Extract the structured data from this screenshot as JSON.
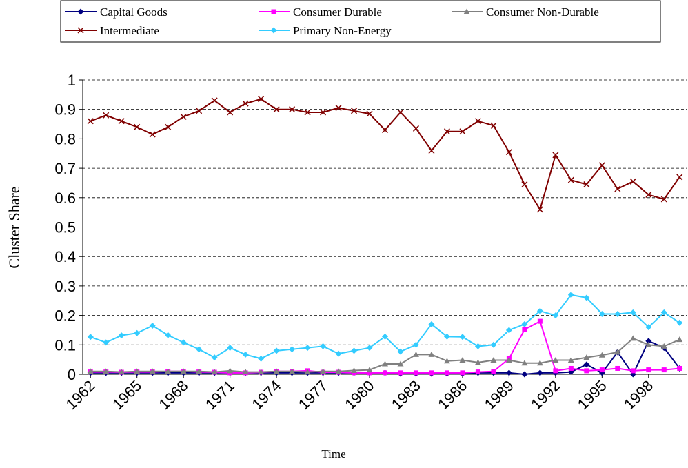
{
  "chart_data": {
    "type": "line",
    "x_label": "Time",
    "y_label": "Cluster Share",
    "x": [
      1962,
      1963,
      1964,
      1965,
      1966,
      1967,
      1968,
      1969,
      1970,
      1971,
      1972,
      1973,
      1974,
      1975,
      1976,
      1977,
      1978,
      1979,
      1980,
      1981,
      1982,
      1983,
      1984,
      1985,
      1986,
      1987,
      1988,
      1989,
      1990,
      1991,
      1992,
      1993,
      1994,
      1995,
      1996,
      1997,
      1998,
      1999,
      2000
    ],
    "xlim": [
      1961.5,
      2000.5
    ],
    "xticks": [
      1962,
      1965,
      1968,
      1971,
      1974,
      1977,
      1980,
      1983,
      1986,
      1989,
      1992,
      1995,
      1998
    ],
    "ylim": [
      0,
      1
    ],
    "yticks": [
      0,
      0.1,
      0.2,
      0.3,
      0.4,
      0.5,
      0.6,
      0.7,
      0.8,
      0.9,
      1
    ],
    "grid": true,
    "legend": "top",
    "series": [
      {
        "name": "Capital Goods",
        "color": "#000080",
        "marker": "diamond",
        "values": [
          0.005,
          0.005,
          0.005,
          0.005,
          0.005,
          0.005,
          0.005,
          0.005,
          0.005,
          0.005,
          0.005,
          0.005,
          0.005,
          0.005,
          0.005,
          0.005,
          0.005,
          0.005,
          0.005,
          0.005,
          0.002,
          0.002,
          0.002,
          0.002,
          0.002,
          0.005,
          0.005,
          0.005,
          0,
          0.005,
          0.005,
          0.008,
          0.033,
          0.005,
          0.075,
          0,
          0.113,
          0.09,
          0.02
        ]
      },
      {
        "name": "Consumer Durable",
        "color": "#ff00ff",
        "marker": "square",
        "values": [
          0.008,
          0.008,
          0.007,
          0.008,
          0.008,
          0.01,
          0.01,
          0.008,
          0.007,
          0.005,
          0.005,
          0.007,
          0.01,
          0.01,
          0.012,
          0.007,
          0.007,
          0.005,
          0.005,
          0.005,
          0.005,
          0.005,
          0.005,
          0.005,
          0.005,
          0.008,
          0.01,
          0.053,
          0.152,
          0.18,
          0.012,
          0.02,
          0.012,
          0.015,
          0.02,
          0.012,
          0.015,
          0.015,
          0.02
        ]
      },
      {
        "name": "Consumer Non-Durable",
        "color": "#808080",
        "marker": "triangle",
        "values": [
          0.01,
          0.01,
          0.008,
          0.01,
          0.01,
          0.01,
          0.01,
          0.01,
          0.008,
          0.012,
          0.008,
          0.008,
          0.01,
          0.01,
          0.008,
          0.01,
          0.01,
          0.013,
          0.015,
          0.035,
          0.035,
          0.067,
          0.067,
          0.045,
          0.048,
          0.04,
          0.048,
          0.048,
          0.038,
          0.038,
          0.048,
          0.048,
          0.057,
          0.065,
          0.075,
          0.122,
          0.1,
          0.095,
          0.118
        ]
      },
      {
        "name": "Intermediate",
        "color": "#800000",
        "marker": "x",
        "values": [
          0.86,
          0.88,
          0.86,
          0.84,
          0.815,
          0.84,
          0.875,
          0.895,
          0.93,
          0.89,
          0.92,
          0.935,
          0.9,
          0.9,
          0.89,
          0.89,
          0.905,
          0.895,
          0.885,
          0.83,
          0.89,
          0.835,
          0.76,
          0.825,
          0.825,
          0.86,
          0.845,
          0.755,
          0.645,
          0.56,
          0.745,
          0.66,
          0.645,
          0.71,
          0.63,
          0.655,
          0.61,
          0.595,
          0.67
        ]
      },
      {
        "name": "Primary Non-Energy",
        "color": "#33ccff",
        "marker": "diamond",
        "values": [
          0.127,
          0.108,
          0.132,
          0.14,
          0.165,
          0.133,
          0.108,
          0.085,
          0.057,
          0.09,
          0.067,
          0.053,
          0.08,
          0.085,
          0.09,
          0.095,
          0.07,
          0.08,
          0.09,
          0.128,
          0.077,
          0.1,
          0.17,
          0.128,
          0.127,
          0.095,
          0.1,
          0.15,
          0.17,
          0.215,
          0.2,
          0.27,
          0.26,
          0.205,
          0.205,
          0.21,
          0.16,
          0.21,
          0.175
        ]
      }
    ]
  }
}
